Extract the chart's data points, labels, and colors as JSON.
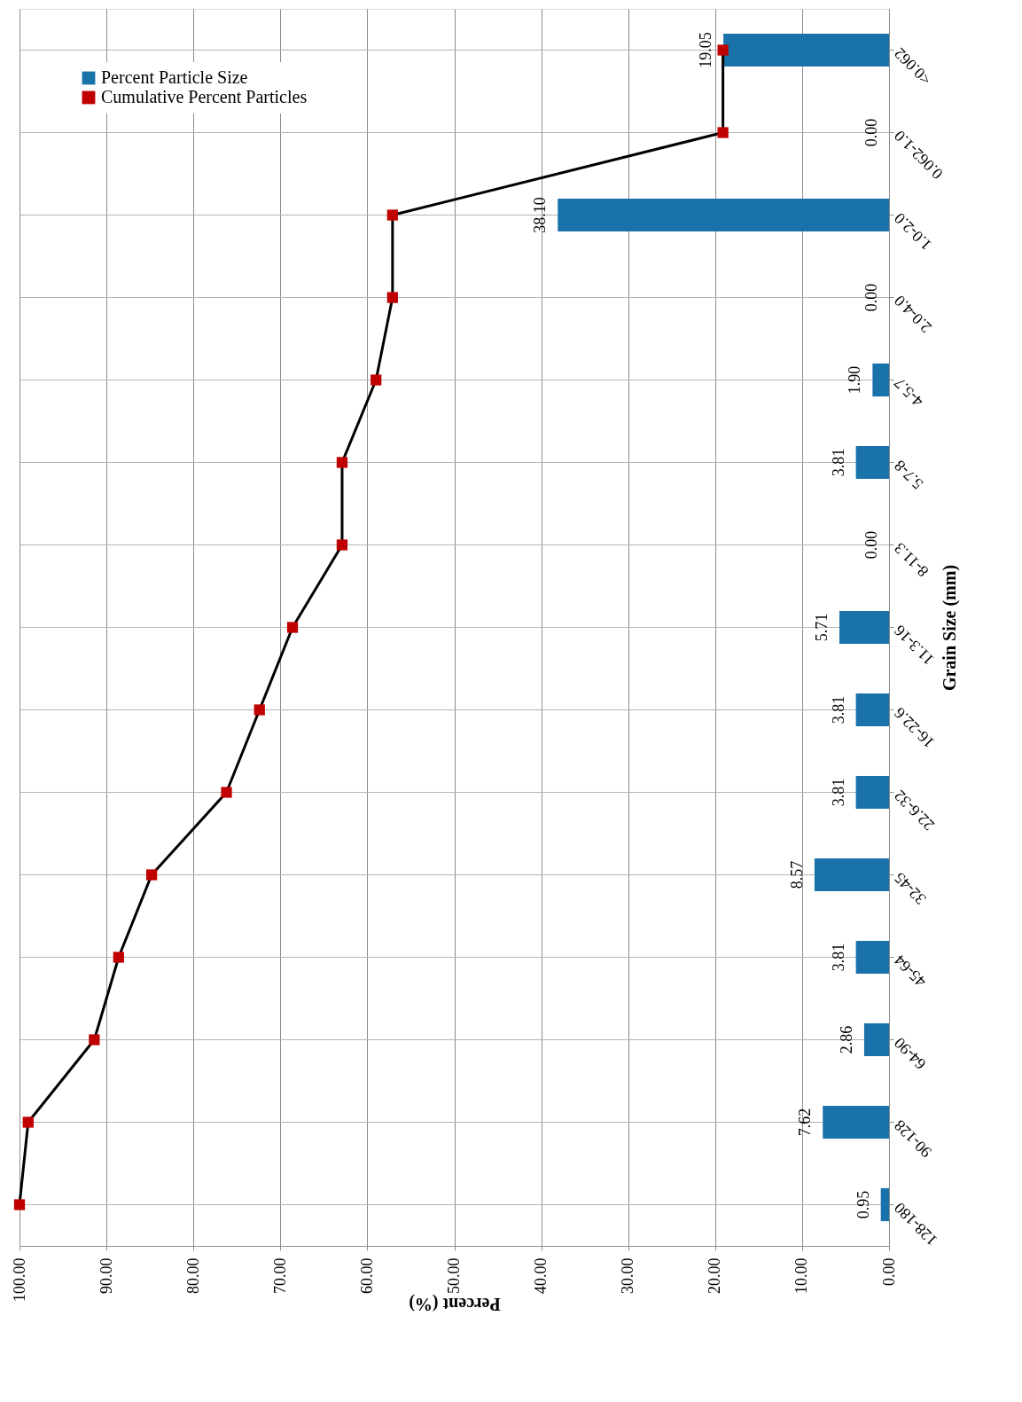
{
  "chart_data": {
    "type": "bar",
    "orientation": "horizontal",
    "xlabel": "Percent (%)",
    "ylabel": "Grain Size (mm)",
    "categories": [
      "<0.062",
      "0.062-1.0",
      "1.0-2.0",
      "2.0-4.0",
      "4-5.7",
      "5.7-8",
      "8-11.3",
      "11.3-16",
      "16-22.6",
      "22.6-32",
      "32-45",
      "45-64",
      "64-90",
      "90-128",
      "128-180"
    ],
    "series": [
      {
        "name": "Percent Particle Size",
        "color": "#1a72aa",
        "values": [
          19.05,
          0.0,
          38.1,
          0.0,
          1.9,
          3.81,
          0.0,
          5.71,
          3.81,
          3.81,
          8.57,
          3.81,
          2.86,
          7.62,
          0.95
        ],
        "value_labels": [
          "19.05",
          "0.00",
          "38.10",
          "0.00",
          "1.90",
          "3.81",
          "0.00",
          "5.71",
          "3.81",
          "3.81",
          "8.57",
          "3.81",
          "2.86",
          "7.62",
          "0.95"
        ]
      },
      {
        "name": "Cumulative Percent Particles",
        "type": "line",
        "color": "#000000",
        "colors": [
          "#c00000",
          "#c00000",
          "#c00000",
          "#c00000",
          "#c00000",
          "#c00000",
          "#c00000",
          "#c00000",
          "#c00000",
          "#c00000",
          "#c00000",
          "#c00000",
          "#c00000",
          "#c00000",
          "#c00000"
        ],
        "marker": "square",
        "line_style": "solid",
        "values": [
          19.1,
          19.1,
          57.1,
          57.1,
          59.0,
          62.9,
          62.9,
          68.6,
          72.4,
          76.2,
          84.8,
          88.6,
          91.4,
          99.0,
          100
        ]
      }
    ],
    "xlim": [
      100,
      0
    ],
    "xticks": [
      {
        "value": 100,
        "label": "100.00"
      },
      {
        "value": 90,
        "label": "90.00"
      },
      {
        "value": 80,
        "label": "80.00"
      },
      {
        "value": 70,
        "label": "70.00"
      },
      {
        "value": 60,
        "label": "60.00"
      },
      {
        "value": 50,
        "label": "50.00"
      },
      {
        "value": 40,
        "label": "40.00"
      },
      {
        "value": 30,
        "label": "30.00"
      },
      {
        "value": 20,
        "label": "20.00"
      },
      {
        "value": 10,
        "label": "10.00"
      },
      {
        "value": 0,
        "label": "0.00"
      }
    ],
    "grid": true,
    "legend": "top left"
  }
}
